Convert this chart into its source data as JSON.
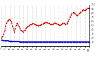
{
  "bg_color": "#ffffff",
  "grid_color": "#bbbbbb",
  "red_color": "#cc0000",
  "blue_color": "#0000cc",
  "ylim": [
    0,
    100
  ],
  "yticks_right": [
    10,
    20,
    30,
    40,
    50,
    60,
    70,
    80,
    90,
    100
  ],
  "red_y": [
    20,
    22,
    25,
    30,
    38,
    48,
    55,
    60,
    62,
    65,
    63,
    60,
    55,
    48,
    40,
    35,
    42,
    50,
    55,
    52,
    48,
    44,
    40,
    38,
    36,
    35,
    37,
    40,
    42,
    45,
    47,
    48,
    50,
    52,
    53,
    54,
    55,
    54,
    53,
    52,
    51,
    50,
    49,
    50,
    51,
    52,
    53,
    54,
    55,
    56,
    57,
    58,
    57,
    56,
    55,
    54,
    53,
    52,
    53,
    54,
    55,
    56,
    55,
    54,
    53,
    52,
    51,
    50,
    52,
    54,
    56,
    55,
    54,
    53,
    54,
    56,
    60,
    65,
    70,
    75,
    78,
    80,
    82,
    80,
    78,
    76,
    74,
    76,
    78,
    80,
    82,
    84,
    86,
    88,
    87,
    86,
    88,
    90,
    92,
    91,
    92
  ],
  "blue_y": [
    14,
    14,
    14,
    13,
    13,
    13,
    13,
    13,
    13,
    12,
    12,
    12,
    12,
    11,
    11,
    11,
    11,
    11,
    11,
    11,
    11,
    10,
    10,
    10,
    10,
    10,
    10,
    10,
    10,
    10,
    10,
    10,
    10,
    10,
    10,
    10,
    10,
    10,
    10,
    10,
    10,
    10,
    10,
    10,
    10,
    10,
    10,
    10,
    10,
    10,
    10,
    10,
    10,
    10,
    10,
    10,
    10,
    10,
    10,
    10,
    10,
    10,
    10,
    10,
    10,
    10,
    10,
    10,
    10,
    10,
    10,
    10,
    10,
    10,
    10,
    10,
    10,
    10,
    10,
    10,
    10,
    10,
    10,
    10,
    10,
    10,
    10,
    10,
    10,
    10,
    10,
    10,
    10,
    10,
    10,
    10,
    10,
    10,
    10,
    10,
    10
  ],
  "n_points": 101,
  "xtick_positions": [
    0,
    5,
    10,
    15,
    20,
    25,
    30,
    35,
    40,
    45,
    50,
    55,
    60,
    65,
    70,
    75,
    80,
    85,
    90,
    95,
    100
  ],
  "marker_size": 1.2,
  "red_linewidth": 0.6,
  "blue_linewidth": 1.0
}
